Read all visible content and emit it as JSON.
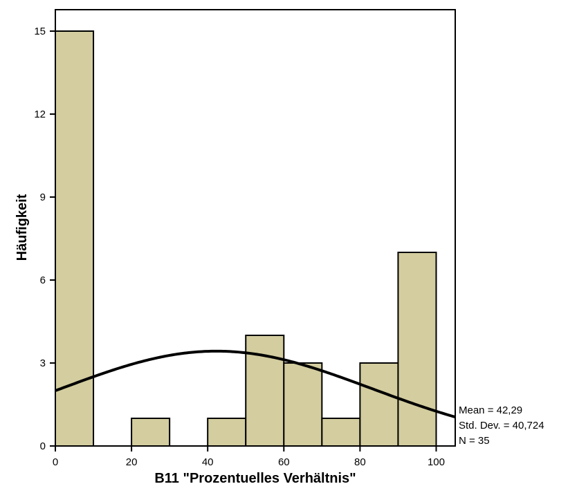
{
  "chart_data": {
    "type": "bar",
    "subtype": "histogram",
    "xlabel": "B11 \"Prozentuelles Verhältnis\"",
    "ylabel": "Häufigkeit",
    "xlim": [
      0,
      105
    ],
    "ylim": [
      0,
      16
    ],
    "x_ticks": [
      0,
      20,
      40,
      60,
      80,
      100
    ],
    "y_ticks": [
      0,
      3,
      6,
      9,
      12,
      15
    ],
    "bins": [
      {
        "start": 0,
        "end": 10,
        "count": 15
      },
      {
        "start": 10,
        "end": 20,
        "count": 0
      },
      {
        "start": 20,
        "end": 30,
        "count": 1
      },
      {
        "start": 30,
        "end": 40,
        "count": 0
      },
      {
        "start": 40,
        "end": 50,
        "count": 1
      },
      {
        "start": 50,
        "end": 60,
        "count": 4
      },
      {
        "start": 60,
        "end": 70,
        "count": 3
      },
      {
        "start": 70,
        "end": 80,
        "count": 1
      },
      {
        "start": 80,
        "end": 90,
        "count": 3
      },
      {
        "start": 90,
        "end": 100,
        "count": 7
      }
    ],
    "normal_curve": {
      "mean": 42.29,
      "sd": 40.724,
      "n": 35,
      "bin_width": 10
    },
    "grid": false,
    "colors": {
      "bar_fill": "#d3cd9f",
      "bar_stroke": "#000000",
      "curve": "#000000"
    }
  },
  "stats": {
    "mean": "Mean = 42,29",
    "std_dev": "Std. Dev. = 40,724",
    "n": "N = 35"
  }
}
